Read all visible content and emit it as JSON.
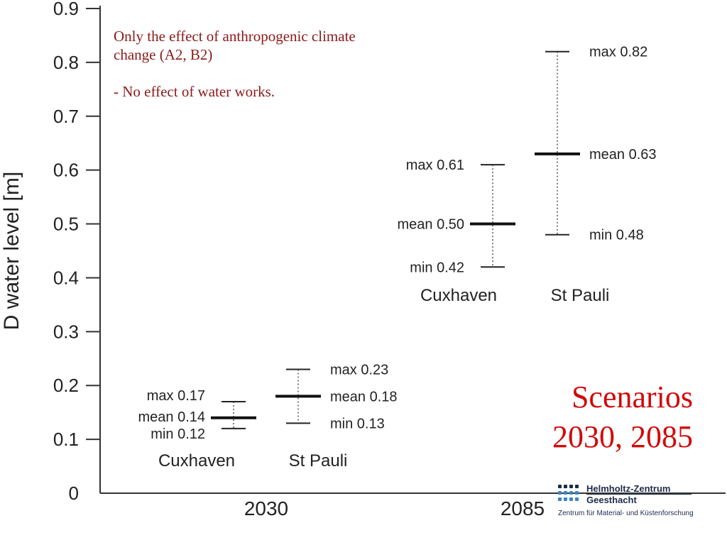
{
  "chart_data": {
    "type": "scatter",
    "ylabel": "D water level  [m]",
    "ylim": [
      0,
      0.9
    ],
    "yticks": [
      0,
      0.1,
      0.2,
      0.3,
      0.4,
      0.5,
      0.6,
      0.7,
      0.8,
      0.9
    ],
    "ytick_labels": [
      "0",
      "0.1",
      "0.2",
      "0.3",
      "0.4",
      "0.5",
      "0.6",
      "0.7",
      "0.8",
      "0.9"
    ],
    "categories": [
      "2030",
      "2085"
    ],
    "grid": false,
    "groups": [
      {
        "scenario": "2030",
        "stations": [
          {
            "name": "Cuxhaven",
            "min": 0.12,
            "mean": 0.14,
            "max": 0.17,
            "min_label": "min 0.12",
            "mean_label": "mean 0.14",
            "max_label": "max 0.17"
          },
          {
            "name": "St Pauli",
            "min": 0.13,
            "mean": 0.18,
            "max": 0.23,
            "min_label": "min 0.13",
            "mean_label": "mean 0.18",
            "max_label": "max 0.23"
          }
        ]
      },
      {
        "scenario": "2085",
        "stations": [
          {
            "name": "Cuxhaven",
            "min": 0.42,
            "mean": 0.5,
            "max": 0.61,
            "min_label": "min 0.42",
            "mean_label": "mean 0.50",
            "max_label": "max 0.61"
          },
          {
            "name": "St Pauli",
            "min": 0.48,
            "mean": 0.63,
            "max": 0.82,
            "min_label": "min 0.48",
            "mean_label": "mean 0.63",
            "max_label": "max 0.82"
          }
        ]
      }
    ]
  },
  "annotations": {
    "note_line1": "Only the effect of anthropogenic climate change (A2, B2)",
    "note_line2": "- No effect of water works.",
    "scenario_title_line1": "Scenarios",
    "scenario_title_line2": "2030, 2085"
  },
  "logo": {
    "name_line1": "Helmholtz-Zentrum",
    "name_line2": "Geesthacht",
    "subtitle": "Zentrum für Material- und Küstenforschung",
    "color": "#1d2b4a",
    "dot_color": "#3b86c8"
  },
  "colors": {
    "axis": "#333333",
    "text": "#222222",
    "note": "#8b1a1a",
    "scenario_title": "#d10a0a"
  }
}
